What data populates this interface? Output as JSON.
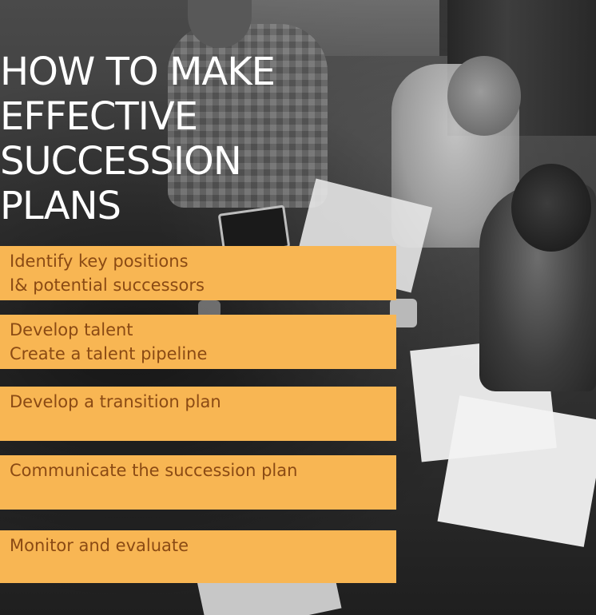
{
  "title": {
    "lines": [
      "HOW TO MAKE",
      "EFFECTIVE",
      "SUCCESSION",
      "PLANS"
    ]
  },
  "steps": [
    {
      "lines": [
        "Identify key positions",
        "I& potential successors"
      ]
    },
    {
      "lines": [
        "Develop talent",
        "Create a talent pipeline"
      ]
    },
    {
      "lines": [
        "Develop a transition plan"
      ]
    },
    {
      "lines": [
        "Communicate the succession plan"
      ]
    },
    {
      "lines": [
        "Monitor and evaluate"
      ]
    }
  ],
  "colors": {
    "step_background": "#f8b653",
    "step_text": "#8a4a14",
    "title_text": "#ffffff"
  }
}
